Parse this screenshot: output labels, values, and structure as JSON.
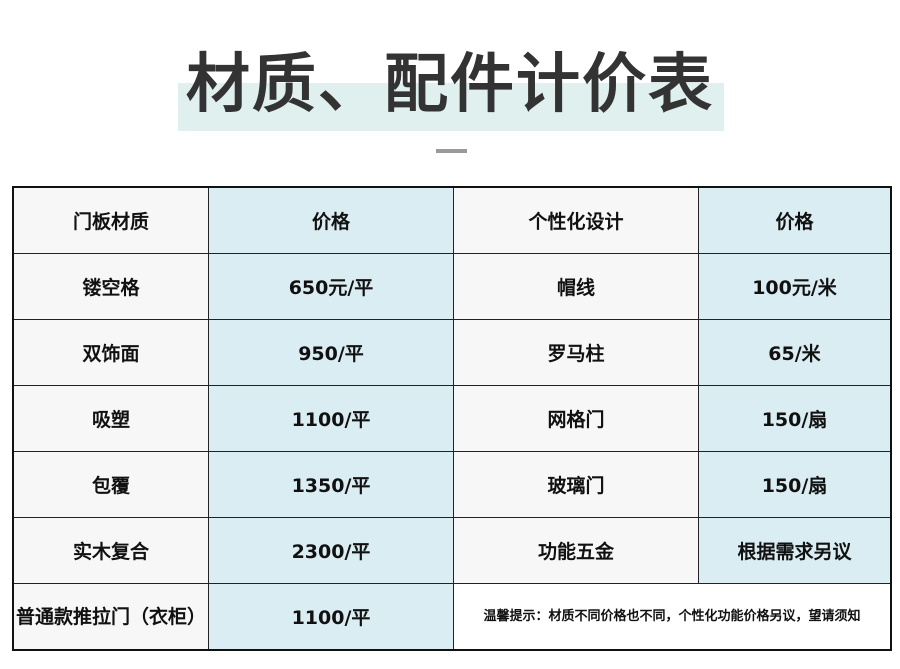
{
  "title": "材质、配件计价表",
  "headers": [
    "门板材质",
    "价格",
    "个性化设计",
    "价格"
  ],
  "rows": [
    {
      "material": "镂空格",
      "material_price": "650元/平",
      "design": "帽线",
      "design_price": "100元/米"
    },
    {
      "material": "双饰面",
      "material_price": "950/平",
      "design": "罗马柱",
      "design_price": "65/米"
    },
    {
      "material": "吸塑",
      "material_price": "1100/平",
      "design": "网格门",
      "design_price": "150/扇"
    },
    {
      "material": "包覆",
      "material_price": "1350/平",
      "design": "玻璃门",
      "design_price": "150/扇"
    },
    {
      "material": "实木复合",
      "material_price": "2300/平",
      "design": "功能五金",
      "design_price": "根据需求另议"
    }
  ],
  "last_row": {
    "material": "普通款推拉门（衣柜）",
    "material_price": "1100/平",
    "note": "温馨提示：材质不同价格也不同，个性化功能价格另议，望请须知"
  },
  "colors": {
    "highlight": "#dff0ef",
    "price_column": "#daedf2",
    "text_column": "#f7f7f7"
  }
}
